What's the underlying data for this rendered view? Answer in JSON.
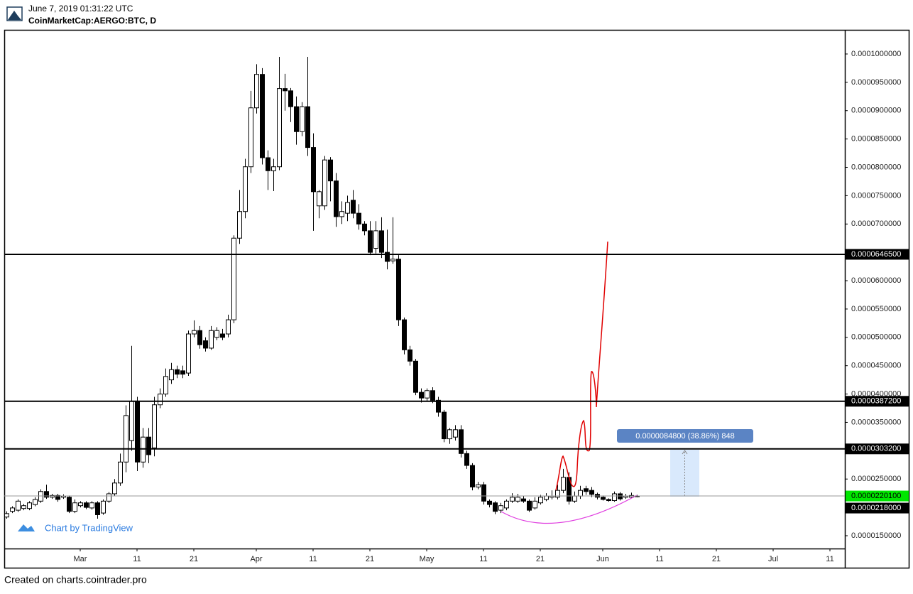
{
  "header": {
    "datetime": "June 7, 2019 01:31:22 UTC",
    "symbol": "CoinMarketCap:AERGO:BTC, D"
  },
  "footer": "Created on charts.cointrader.pro",
  "chart_data": {
    "type": "candlestick",
    "attribution": "Chart by TradingView",
    "up_color": "#ffffff",
    "down_color": "#000000",
    "x": [
      "02-16",
      "02-17",
      "02-18",
      "02-19",
      "02-20",
      "02-21",
      "02-22",
      "02-23",
      "02-24",
      "02-25",
      "02-26",
      "02-27",
      "02-28",
      "03-01",
      "03-02",
      "03-03",
      "03-04",
      "03-05",
      "03-06",
      "03-07",
      "03-08",
      "03-09",
      "03-10",
      "03-11",
      "03-12",
      "03-13",
      "03-14",
      "03-15",
      "03-16",
      "03-17",
      "03-18",
      "03-19",
      "03-20",
      "03-21",
      "03-22",
      "03-23",
      "03-24",
      "03-25",
      "03-26",
      "03-27",
      "03-28",
      "03-29",
      "03-30",
      "03-31",
      "04-01",
      "04-02",
      "04-03",
      "04-04",
      "04-05",
      "04-06",
      "04-07",
      "04-08",
      "04-09",
      "04-10",
      "04-11",
      "04-12",
      "04-13",
      "04-14",
      "04-15",
      "04-16",
      "04-17",
      "04-18",
      "04-19",
      "04-20",
      "04-21",
      "04-22",
      "04-23",
      "04-24",
      "04-25",
      "04-26",
      "04-27",
      "04-28",
      "04-29",
      "04-30",
      "05-01",
      "05-02",
      "05-03",
      "05-04",
      "05-05",
      "05-06",
      "05-07",
      "05-08",
      "05-09",
      "05-10",
      "05-11",
      "05-12",
      "05-13",
      "05-14",
      "05-15",
      "05-16",
      "05-17",
      "05-18",
      "05-19",
      "05-20",
      "05-21",
      "05-22",
      "05-23",
      "05-24",
      "05-25",
      "05-26",
      "05-27",
      "05-28",
      "05-29",
      "05-30",
      "05-31",
      "06-01",
      "06-02",
      "06-03",
      "06-04",
      "06-05",
      "06-06",
      "06-07"
    ],
    "open": [
      1.83e-05,
      1.93e-05,
      1.95e-05,
      1.98e-05,
      1.98e-05,
      2.05e-05,
      2.11e-05,
      2.28e-05,
      2.18e-05,
      2.21e-05,
      2.18e-05,
      2.18e-05,
      1.93e-05,
      2.03e-05,
      2.08e-05,
      1.99e-05,
      2.08e-05,
      1.9e-05,
      2.11e-05,
      2.24e-05,
      2.43e-05,
      2.8e-05,
      3.18e-05,
      3.87e-05,
      2.8e-05,
      3.24e-05,
      3.05e-05,
      3.81e-05,
      4e-05,
      4.25e-05,
      4.43e-05,
      4.41e-05,
      4.37e-05,
      5.06e-05,
      5.12e-05,
      4.94e-05,
      4.81e-05,
      5e-05,
      5.06e-05,
      5.06e-05,
      5.31e-05,
      6.75e-05,
      7.22e-05,
      8.01e-05,
      9.05e-05,
      9.64e-05,
      8.17e-05,
      7.94e-05,
      8.01e-05,
      9.39e-05,
      9.35e-05,
      9.07e-05,
      8.63e-05,
      9.07e-05,
      8.35e-05,
      7.32e-05,
      7.32e-05,
      8.13e-05,
      7.76e-05,
      7.13e-05,
      7.19e-05,
      7.42e-05,
      7.19e-05,
      7e-05,
      6.88e-05,
      6.57e-05,
      6.88e-05,
      6.5e-05,
      6.35e-05,
      6.38e-05,
      5.31e-05,
      4.78e-05,
      4.58e-05,
      4.03e-05,
      3.93e-05,
      4.06e-05,
      3.89e-05,
      3.68e-05,
      3.21e-05,
      3.24e-05,
      3.37e-05,
      2.95e-05,
      2.74e-05,
      2.36e-05,
      2.4e-05,
      2.11e-05,
      2.08e-05,
      1.95e-05,
      1.99e-05,
      2.11e-05,
      2.11e-05,
      2.15e-05,
      2.11e-05,
      1.99e-05,
      2.08e-05,
      2.14e-05,
      2.18e-05,
      2.18e-05,
      2.3e-05,
      2.53e-05,
      2.11e-05,
      2.2e-05,
      2.33e-05,
      2.3e-05,
      2.23e-05,
      2.18e-05,
      2.14e-05,
      2.12e-05,
      2.24e-05,
      2.18e-05,
      2.18e-05,
      2.19e-05
    ],
    "high": [
      1.93e-05,
      2.02e-05,
      2.14e-05,
      2.06e-05,
      2.11e-05,
      2.18e-05,
      2.32e-05,
      2.4e-05,
      2.24e-05,
      2.24e-05,
      2.23e-05,
      2.21e-05,
      2.14e-05,
      2.11e-05,
      2.11e-05,
      2.11e-05,
      2.11e-05,
      2.14e-05,
      2.27e-05,
      2.5e-05,
      2.95e-05,
      3.8e-05,
      4.85e-05,
      3.95e-05,
      3.4e-05,
      3.4e-05,
      3.95e-05,
      4.1e-05,
      4.45e-05,
      4.55e-05,
      4.5e-05,
      4.5e-05,
      5.12e-05,
      5.3e-05,
      5.2e-05,
      5e-05,
      5.2e-05,
      5.18e-05,
      5.15e-05,
      5.4e-05,
      6.8e-05,
      7.6e-05,
      8.15e-05,
      9.35e-05,
      9.82e-05,
      9.75e-05,
      8.3e-05,
      8.15e-05,
      9.95e-05,
      9.65e-05,
      9.4e-05,
      9.25e-05,
      9.15e-05,
      9.95e-05,
      8.6e-05,
      7.6e-05,
      8.2e-05,
      8.18e-05,
      7.9e-05,
      7.4e-05,
      7.5e-05,
      7.6e-05,
      7.35e-05,
      7.05e-05,
      7.05e-05,
      7.05e-05,
      7.12e-05,
      6.9e-05,
      7.12e-05,
      6.45e-05,
      5.35e-05,
      4.85e-05,
      4.62e-05,
      4.1e-05,
      4.1e-05,
      4.12e-05,
      3.95e-05,
      3.72e-05,
      3.4e-05,
      3.45e-05,
      3.45e-05,
      3e-05,
      2.78e-05,
      2.45e-05,
      2.45e-05,
      2.14e-05,
      2.11e-05,
      2.08e-05,
      2.14e-05,
      2.25e-05,
      2.24e-05,
      2.2e-05,
      2.14e-05,
      2.18e-05,
      2.22e-05,
      2.25e-05,
      2.3e-05,
      2.4e-05,
      2.68e-05,
      2.62e-05,
      2.28e-05,
      2.38e-05,
      2.38e-05,
      2.36e-05,
      2.26e-05,
      2.21e-05,
      2.16e-05,
      2.28e-05,
      2.27e-05,
      2.24e-05,
      2.26e-05,
      2.22e-05
    ],
    "low": [
      1.8e-05,
      1.9e-05,
      1.92e-05,
      1.95e-05,
      1.95e-05,
      2.02e-05,
      2.08e-05,
      2.15e-05,
      2.15e-05,
      2.1e-05,
      2.15e-05,
      1.9e-05,
      1.9e-05,
      2e-05,
      1.97e-05,
      1.96e-05,
      1.8e-05,
      1.87e-05,
      2.08e-05,
      2.2e-05,
      2.38e-05,
      2.62e-05,
      3e-05,
      2.64e-05,
      2.7e-05,
      2.78e-05,
      2.9e-05,
      3.75e-05,
      3.95e-05,
      4.18e-05,
      4.28e-05,
      4.28e-05,
      4.32e-05,
      5e-05,
      4.8e-05,
      4.75e-05,
      4.78e-05,
      4.95e-05,
      4.95e-05,
      5e-05,
      5.25e-05,
      6.65e-05,
      7.1e-05,
      7.9e-05,
      8.95e-05,
      8.05e-05,
      7.6e-05,
      7.58e-05,
      7.95e-05,
      9e-05,
      8.8e-05,
      8.4e-05,
      8.55e-05,
      8.2e-05,
      6.88e-05,
      7.1e-05,
      7.25e-05,
      7.4e-05,
      6.95e-05,
      7e-05,
      7.05e-05,
      7.1e-05,
      6.9e-05,
      6.8e-05,
      6.45e-05,
      6.48e-05,
      6.4e-05,
      6.2e-05,
      6.3e-05,
      5.2e-05,
      4.7e-05,
      4.5e-05,
      3.98e-05,
      3.85e-05,
      3.88e-05,
      3.84e-05,
      3.6e-05,
      3.15e-05,
      3.12e-05,
      3.18e-05,
      2.88e-05,
      2.68e-05,
      2.3e-05,
      2.32e-05,
      2.05e-05,
      2e-05,
      1.88e-05,
      1.9e-05,
      1.95e-05,
      2.08e-05,
      2.08e-05,
      2.08e-05,
      1.92e-05,
      1.96e-05,
      2.05e-05,
      2.11e-05,
      2.14e-05,
      2.14e-05,
      2.25e-05,
      2.05e-05,
      2.08e-05,
      2.15e-05,
      2.22e-05,
      2.18e-05,
      2.14e-05,
      2.12e-05,
      2.1e-05,
      2.1e-05,
      2.12e-05,
      2.15e-05,
      2.16e-05,
      2.18e-05
    ],
    "close": [
      1.89e-05,
      1.99e-05,
      2.11e-05,
      2.03e-05,
      2.08e-05,
      2.14e-05,
      2.28e-05,
      2.18e-05,
      2.21e-05,
      2.14e-05,
      2.2e-05,
      1.93e-05,
      2.08e-05,
      2.08e-05,
      2e-05,
      2.08e-05,
      1.87e-05,
      2.11e-05,
      2.24e-05,
      2.43e-05,
      2.8e-05,
      3.62e-05,
      3.87e-05,
      2.8e-05,
      3.24e-05,
      2.93e-05,
      3.81e-05,
      4e-05,
      4.31e-05,
      4.43e-05,
      4.35e-05,
      4.35e-05,
      5.06e-05,
      5.12e-05,
      4.87e-05,
      4.81e-05,
      5.12e-05,
      5.12e-05,
      5e-05,
      5.31e-05,
      6.75e-05,
      7.22e-05,
      8.01e-05,
      9.05e-05,
      9.64e-05,
      8.17e-05,
      7.94e-05,
      8.01e-05,
      9.39e-05,
      9.35e-05,
      9.07e-05,
      8.63e-05,
      9.07e-05,
      8.35e-05,
      7.57e-05,
      7.57e-05,
      8.13e-05,
      7.76e-05,
      7.13e-05,
      7.22e-05,
      7.38e-05,
      7.19e-05,
      7e-05,
      6.88e-05,
      6.5e-05,
      6.88e-05,
      6.5e-05,
      6.34e-05,
      6.38e-05,
      5.31e-05,
      4.78e-05,
      4.58e-05,
      4.03e-05,
      3.93e-05,
      4.06e-05,
      3.89e-05,
      3.68e-05,
      3.21e-05,
      3.37e-05,
      3.37e-05,
      2.95e-05,
      2.74e-05,
      2.36e-05,
      2.4e-05,
      2.11e-05,
      2.05e-05,
      1.93e-05,
      2.03e-05,
      2.11e-05,
      2.18e-05,
      2.18e-05,
      2.11e-05,
      1.95e-05,
      2.11e-05,
      2.18e-05,
      2.2e-05,
      2.2e-05,
      2.3e-05,
      2.53e-05,
      2.11e-05,
      2.2e-05,
      2.3e-05,
      2.28e-05,
      2.23e-05,
      2.18e-05,
      2.14e-05,
      2.12e-05,
      2.24e-05,
      2.15e-05,
      2.2e-05,
      2.21e-05,
      2.201e-05
    ],
    "ylim": [
      1.274e-05,
      0.00010426
    ],
    "yticks": [
      {
        "value": 1.5e-05,
        "label": "0.0000150000"
      },
      {
        "value": 2.5e-05,
        "label": "0.0000250000"
      },
      {
        "value": 3.5e-05,
        "label": "0.0000350000"
      },
      {
        "value": 4e-05,
        "label": "0.0000400000"
      },
      {
        "value": 4.5e-05,
        "label": "0.0000450000"
      },
      {
        "value": 5e-05,
        "label": "0.0000500000"
      },
      {
        "value": 5.5e-05,
        "label": "0.0000550000"
      },
      {
        "value": 6e-05,
        "label": "0.0000600000"
      },
      {
        "value": 7e-05,
        "label": "0.0000700000"
      },
      {
        "value": 7.5e-05,
        "label": "0.0000750000"
      },
      {
        "value": 8e-05,
        "label": "0.0000800000"
      },
      {
        "value": 8.5e-05,
        "label": "0.0000850000"
      },
      {
        "value": 9e-05,
        "label": "0.0000900000"
      },
      {
        "value": 9.5e-05,
        "label": "0.0000950000"
      },
      {
        "value": 0.0001,
        "label": "0.0001000000"
      }
    ],
    "xticks": [
      {
        "value": "03-01",
        "label": "Mar"
      },
      {
        "value": "03-11",
        "label": "11"
      },
      {
        "value": "03-21",
        "label": "21"
      },
      {
        "value": "04-01",
        "label": "Apr"
      },
      {
        "value": "04-11",
        "label": "11"
      },
      {
        "value": "04-21",
        "label": "21"
      },
      {
        "value": "05-01",
        "label": "May"
      },
      {
        "value": "05-11",
        "label": "11"
      },
      {
        "value": "05-21",
        "label": "21"
      },
      {
        "value": "06-01",
        "label": "Jun"
      },
      {
        "value": "06-11",
        "label": "11"
      },
      {
        "value": "06-21",
        "label": "21"
      },
      {
        "value": "07-01",
        "label": "Jul"
      },
      {
        "value": "07-11",
        "label": "11"
      }
    ],
    "levels": [
      {
        "value": 6.465e-05,
        "label": "0.0000646500"
      },
      {
        "value": 3.872e-05,
        "label": "0.0000387200"
      },
      {
        "value": 3.032e-05,
        "label": "0.0000303200"
      }
    ],
    "last_price": {
      "value": 2.201e-05,
      "label": "0.0000220100",
      "color": "#00e600"
    },
    "prev_price": {
      "value": 2.18e-05,
      "label": "0.0000218000"
    },
    "measure_label": "0.0000084800 (38.86%) 848"
  }
}
